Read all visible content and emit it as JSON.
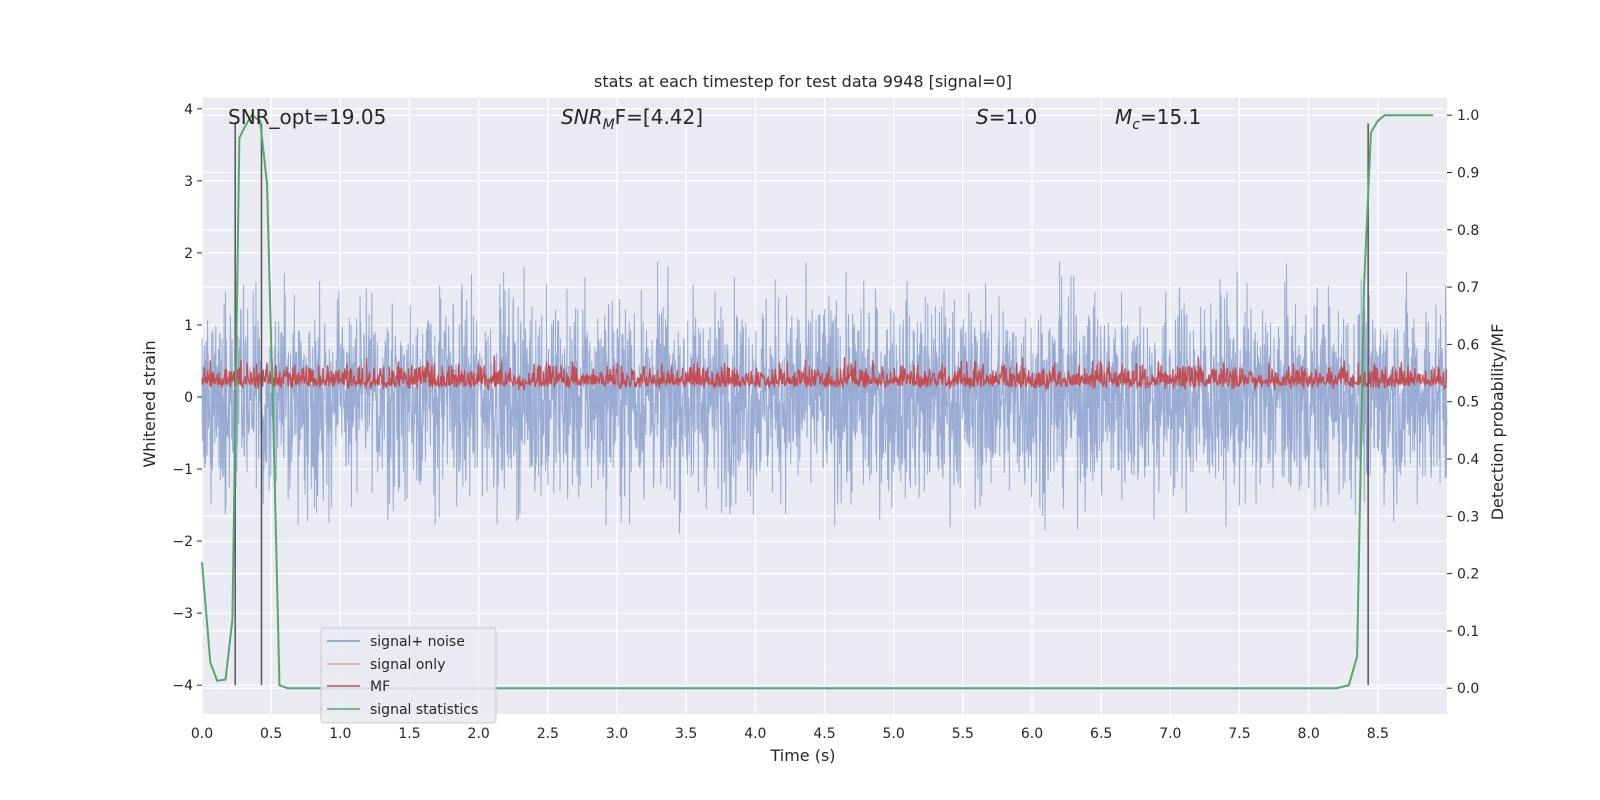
{
  "chart_data": {
    "type": "line",
    "title": "stats at each timestep for test data 9948 [signal=0]",
    "xlabel": "Time (s)",
    "ylabel": "Whitened strain",
    "ylabel_right": "Detection probability/MF",
    "xlim": [
      0,
      9
    ],
    "ylim": [
      -4.4,
      4.15
    ],
    "ylim_right": [
      -0.045,
      1.03
    ],
    "x_ticks": [
      "0.0",
      "0.5",
      "1.0",
      "1.5",
      "2.0",
      "2.5",
      "3.0",
      "3.5",
      "4.0",
      "4.5",
      "5.0",
      "5.5",
      "6.0",
      "6.5",
      "7.0",
      "7.5",
      "8.0",
      "8.5"
    ],
    "y_ticks": [
      "4",
      "3",
      "2",
      "1",
      "0",
      "−1",
      "−2",
      "−3",
      "−4"
    ],
    "y_ticks_right": [
      "1.0",
      "0.9",
      "0.8",
      "0.7",
      "0.6",
      "0.5",
      "0.4",
      "0.3",
      "0.2",
      "0.1",
      "0.0"
    ],
    "grid": true,
    "legend_position": "lower-left",
    "annotations": {
      "snr_opt": "SNR_opt=19.05",
      "snr_mf_label": "SNR",
      "snr_mf_sub": "M",
      "snr_mf_rest": "F=[4.42]",
      "s_label": "S",
      "s_value": "=1.0",
      "mc_label": "M",
      "mc_sub": "c",
      "mc_value": "=15.1"
    },
    "series": [
      {
        "name": "signal+ noise",
        "color": "#7b96c8",
        "style": "noise",
        "amplitude_range": [
          -4.0,
          3.8
        ]
      },
      {
        "name": "signal only",
        "color": "#e8a88a",
        "style": "flat"
      },
      {
        "name": "MF",
        "color": "#c44e52",
        "style": "band",
        "center_right_axis": 0.535,
        "amplitude_range_right": [
          0.51,
          0.61
        ]
      },
      {
        "name": "signal statistics",
        "color": "#55a868",
        "x": [
          0.0,
          0.06,
          0.11,
          0.17,
          0.22,
          0.27,
          0.31,
          0.36,
          0.42,
          0.47,
          0.52,
          0.56,
          0.62,
          1.0,
          2.0,
          3.0,
          4.0,
          5.0,
          6.0,
          7.0,
          8.0,
          8.2,
          8.29,
          8.35,
          8.4,
          8.45,
          8.5,
          8.55,
          8.6,
          8.9
        ],
        "y": [
          0.22,
          0.045,
          0.013,
          0.015,
          0.12,
          0.96,
          0.98,
          1.0,
          0.99,
          0.88,
          0.42,
          0.005,
          0.0,
          0.0,
          0.0,
          0.0,
          0.0,
          0.0,
          0.0,
          0.0,
          0.0,
          0.0,
          0.005,
          0.055,
          0.7,
          0.97,
          0.99,
          1.0,
          1.0,
          1.0
        ]
      }
    ],
    "vertical_markers": [
      0.24,
      0.43,
      8.43
    ],
    "marker_color": "#555555",
    "legend_entries": [
      "signal+ noise",
      "signal only",
      "MF",
      "signal statistics"
    ]
  }
}
